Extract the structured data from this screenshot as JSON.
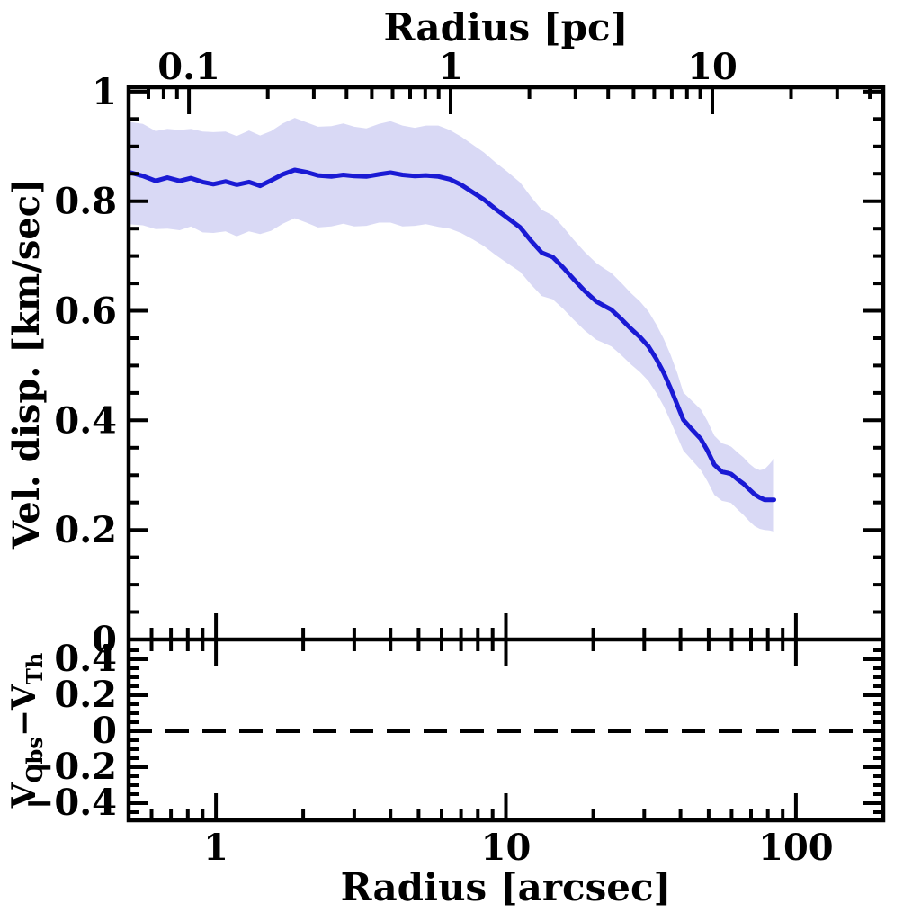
{
  "figure": {
    "background": "#ffffff",
    "frame_color": "#000000"
  },
  "chart_data": {
    "type": "line",
    "x_axis_bottom": {
      "label": "Radius [arcsec]",
      "scale": "log",
      "range": [
        0.5,
        200
      ],
      "major_ticks": [
        1,
        10,
        100
      ],
      "major_tick_labels": [
        "1",
        "10",
        "100"
      ],
      "minor_ticks": [
        0.6,
        0.7,
        0.8,
        0.9,
        2,
        3,
        4,
        5,
        6,
        7,
        8,
        9,
        20,
        30,
        40,
        50,
        60,
        70,
        80,
        90
      ]
    },
    "x_axis_top": {
      "label": "Radius [pc]",
      "scale": "log",
      "range": [
        0.0588,
        45
      ],
      "major_ticks": [
        0.1,
        1,
        10
      ],
      "major_tick_labels": [
        "0.1",
        "1",
        "10"
      ],
      "minor_ticks": [
        0.06,
        0.07,
        0.08,
        0.09,
        0.2,
        0.3,
        0.4,
        0.5,
        0.6,
        0.7,
        0.8,
        0.9,
        2,
        3,
        4,
        5,
        6,
        7,
        8,
        9,
        20,
        30,
        40
      ]
    },
    "main_panel": {
      "ylabel": "Vel. disp. [km/sec]",
      "ylim": [
        0,
        1.008
      ],
      "major_yticks": [
        0,
        0.2,
        0.4,
        0.6,
        0.8,
        1
      ],
      "ytick_labels": [
        "0",
        "0.2",
        "0.4",
        "0.6",
        "0.8",
        "1"
      ],
      "minor_ytick_step": 0.05,
      "series": [
        {
          "name": "velocity dispersion profile with uncertainty band",
          "color": "#1a1ad4",
          "line_width": 5,
          "band_color": "#d9d9f5",
          "x": [
            0.5,
            0.56,
            0.62,
            0.68,
            0.75,
            0.82,
            0.9,
            0.98,
            1.08,
            1.18,
            1.3,
            1.42,
            1.55,
            1.7,
            1.87,
            2.05,
            2.25,
            2.5,
            2.75,
            3.0,
            3.3,
            3.65,
            4.0,
            4.4,
            4.85,
            5.3,
            5.85,
            6.4,
            7.0,
            7.7,
            8.4,
            9.2,
            10.1,
            11.2,
            12.2,
            13.3,
            14.5,
            15.8,
            17.1,
            18.7,
            20.5,
            22.0,
            23.1,
            25.0,
            27.0,
            29.0,
            31.0,
            33.0,
            35.0,
            37.0,
            39.0,
            40.9,
            43.5,
            47.0,
            49.5,
            52.3,
            55.6,
            58.0,
            59.8,
            63.0,
            66.0,
            69.0,
            72.0,
            75.0,
            78.0,
            81.0,
            84.0
          ],
          "y": [
            0.853,
            0.846,
            0.837,
            0.843,
            0.837,
            0.842,
            0.835,
            0.831,
            0.836,
            0.83,
            0.835,
            0.828,
            0.838,
            0.849,
            0.857,
            0.853,
            0.847,
            0.845,
            0.848,
            0.846,
            0.845,
            0.849,
            0.852,
            0.848,
            0.846,
            0.847,
            0.845,
            0.84,
            0.83,
            0.816,
            0.803,
            0.786,
            0.77,
            0.752,
            0.728,
            0.706,
            0.698,
            0.678,
            0.658,
            0.636,
            0.617,
            0.608,
            0.602,
            0.585,
            0.567,
            0.552,
            0.535,
            0.512,
            0.487,
            0.458,
            0.428,
            0.401,
            0.385,
            0.366,
            0.345,
            0.319,
            0.306,
            0.304,
            0.302,
            0.292,
            0.284,
            0.274,
            0.265,
            0.259,
            0.255,
            0.255,
            0.255
          ],
          "band_upper": [
            0.945,
            0.941,
            0.928,
            0.932,
            0.93,
            0.932,
            0.927,
            0.926,
            0.927,
            0.919,
            0.929,
            0.92,
            0.928,
            0.942,
            0.952,
            0.944,
            0.936,
            0.937,
            0.942,
            0.936,
            0.933,
            0.941,
            0.946,
            0.938,
            0.934,
            0.938,
            0.938,
            0.93,
            0.918,
            0.903,
            0.889,
            0.871,
            0.854,
            0.834,
            0.808,
            0.784,
            0.774,
            0.752,
            0.73,
            0.707,
            0.687,
            0.676,
            0.669,
            0.651,
            0.632,
            0.617,
            0.599,
            0.575,
            0.549,
            0.519,
            0.486,
            0.451,
            0.437,
            0.42,
            0.399,
            0.372,
            0.358,
            0.355,
            0.352,
            0.341,
            0.332,
            0.321,
            0.313,
            0.309,
            0.311,
            0.32,
            0.33
          ],
          "band_lower": [
            0.758,
            0.756,
            0.749,
            0.75,
            0.747,
            0.754,
            0.743,
            0.742,
            0.745,
            0.736,
            0.745,
            0.74,
            0.746,
            0.759,
            0.769,
            0.761,
            0.752,
            0.754,
            0.759,
            0.754,
            0.755,
            0.761,
            0.761,
            0.754,
            0.755,
            0.758,
            0.753,
            0.75,
            0.742,
            0.73,
            0.718,
            0.702,
            0.687,
            0.671,
            0.648,
            0.627,
            0.621,
            0.603,
            0.584,
            0.564,
            0.547,
            0.54,
            0.535,
            0.519,
            0.502,
            0.488,
            0.472,
            0.45,
            0.426,
            0.398,
            0.37,
            0.345,
            0.329,
            0.309,
            0.289,
            0.264,
            0.253,
            0.251,
            0.249,
            0.237,
            0.227,
            0.216,
            0.207,
            0.202,
            0.2,
            0.199,
            0.197
          ]
        }
      ]
    },
    "residual_panel": {
      "ylabel_text": "V_Obs − V_Th",
      "ylabel_parts": {
        "base1": "V",
        "sub1": "Obs",
        "operator": "−",
        "base2": "V",
        "sub2": "Th"
      },
      "ylim": [
        -0.495,
        0.51
      ],
      "major_yticks": [
        0.4,
        0.2,
        0,
        -0.2,
        -0.4
      ],
      "ytick_labels": [
        "0.4",
        "0.2",
        "0",
        "−0.2",
        "−0.4"
      ],
      "minor_ytick_step": 0.05,
      "zero_line": {
        "value": 0,
        "style": "dashed",
        "color": "#000000"
      }
    }
  }
}
